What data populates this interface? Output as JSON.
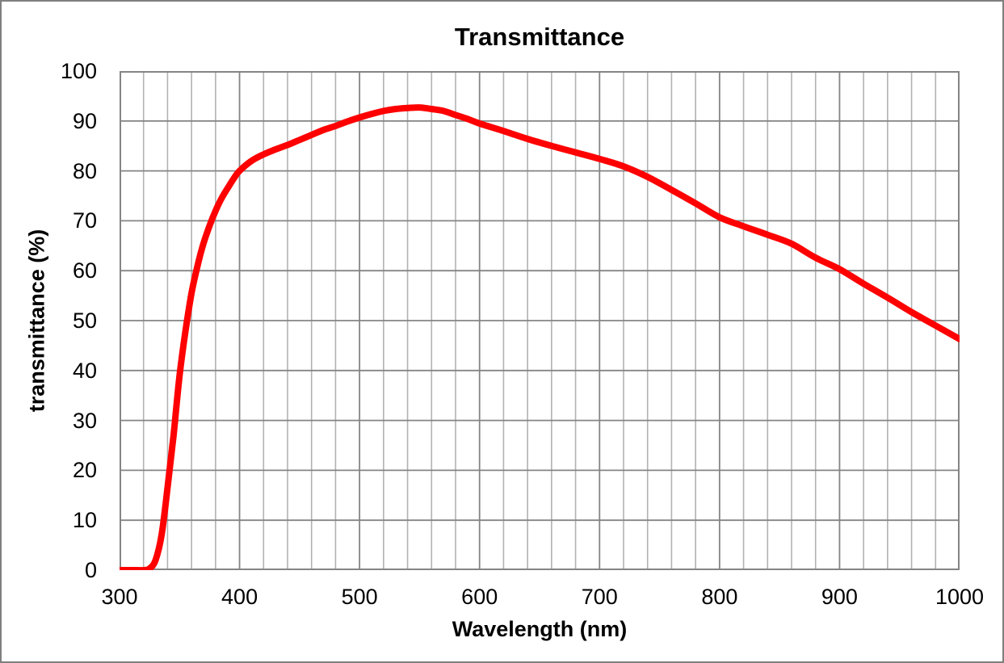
{
  "title": "Transmittance",
  "colors": {
    "curve": "#fe0000",
    "major_grid": "#858585",
    "minor_grid": "#b2b2b2",
    "plot_border": "#858585",
    "outer_border": "#7f7f7f",
    "text": "#000000",
    "background": "#ffffff"
  },
  "chart_data": {
    "type": "line",
    "title": "Transmittance",
    "xlabel": "Wavelength (nm)",
    "ylabel": "transmittance (%)",
    "xlim": [
      300,
      1000
    ],
    "ylim": [
      0,
      100
    ],
    "x_ticks": [
      300,
      400,
      500,
      600,
      700,
      800,
      900,
      1000
    ],
    "y_ticks": [
      0,
      10,
      20,
      30,
      40,
      50,
      60,
      70,
      80,
      90,
      100
    ],
    "x_minor_step": 20,
    "grid": "horizontal major every 10; vertical minor every 20 nm, major every 100 nm",
    "legend_position": "none",
    "series": [
      {
        "name": "transmittance",
        "color": "#fe0000",
        "x": [
          300,
          305,
          310,
          315,
          320,
          325,
          330,
          335,
          340,
          345,
          350,
          355,
          360,
          365,
          370,
          375,
          380,
          385,
          390,
          395,
          400,
          410,
          420,
          430,
          440,
          450,
          460,
          470,
          480,
          490,
          500,
          510,
          520,
          530,
          540,
          550,
          560,
          570,
          580,
          590,
          600,
          620,
          640,
          660,
          680,
          700,
          720,
          740,
          760,
          780,
          800,
          820,
          840,
          860,
          880,
          900,
          920,
          940,
          960,
          980,
          1000
        ],
        "y": [
          0,
          0,
          0,
          0,
          0,
          0.3,
          2,
          7,
          16.5,
          27,
          39,
          48,
          55.5,
          61,
          65.5,
          69,
          72,
          74.5,
          76.5,
          78.4,
          80,
          82,
          83.3,
          84.3,
          85.2,
          86.2,
          87.2,
          88.2,
          89,
          89.9,
          90.7,
          91.4,
          92,
          92.4,
          92.6,
          92.7,
          92.4,
          92,
          91.2,
          90.4,
          89.5,
          88,
          86.4,
          85,
          83.7,
          82.4,
          80.9,
          78.8,
          76.2,
          73.5,
          70.7,
          68.9,
          67.2,
          65.4,
          62.6,
          60.3,
          57.4,
          54.6,
          51.7,
          49,
          46.3
        ]
      }
    ]
  }
}
